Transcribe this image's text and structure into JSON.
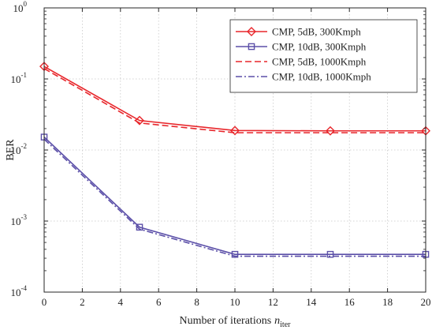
{
  "chart_data": {
    "type": "line",
    "xlabel": "Number of iterations",
    "xlabel_symbol": "n",
    "xlabel_subscript": "iter",
    "ylabel": "BER",
    "yscale": "log",
    "xlim": [
      0,
      20
    ],
    "ylim": [
      0.0001,
      1
    ],
    "x_ticks": [
      0,
      2,
      4,
      6,
      8,
      10,
      12,
      14,
      16,
      18,
      20
    ],
    "x_tick_labels": [
      "0",
      "2",
      "4",
      "6",
      "8",
      "10",
      "12",
      "14",
      "16",
      "18",
      "20"
    ],
    "y_ticks": [
      0.0001,
      0.001,
      0.01,
      0.1,
      1
    ],
    "y_tick_labels": [
      {
        "base": "10",
        "exp": "-4"
      },
      {
        "base": "10",
        "exp": "-3"
      },
      {
        "base": "10",
        "exp": "-2"
      },
      {
        "base": "10",
        "exp": "-1"
      },
      {
        "base": "10",
        "exp": "0"
      }
    ],
    "grid": true,
    "legend_position": "top-right",
    "series": [
      {
        "name": "CMP, 5dB, 300Kmph",
        "color": "#e8262b",
        "line_style": "solid",
        "marker": "diamond",
        "x": [
          0,
          5,
          10,
          15,
          20
        ],
        "y": [
          0.15,
          0.026,
          0.0188,
          0.0186,
          0.0186
        ]
      },
      {
        "name": "CMP, 10dB, 300Kmph",
        "color": "#5b4fa8",
        "line_style": "solid",
        "marker": "square",
        "x": [
          0,
          5,
          10,
          15,
          20
        ],
        "y": [
          0.0152,
          0.00082,
          0.00034,
          0.00034,
          0.00034
        ]
      },
      {
        "name": "CMP, 5dB, 1000Kmph",
        "color": "#e8262b",
        "line_style": "dashed",
        "marker": "none",
        "x": [
          0,
          5,
          10,
          15,
          20
        ],
        "y": [
          0.14,
          0.024,
          0.0175,
          0.0175,
          0.0175
        ]
      },
      {
        "name": "CMP, 10dB, 1000Kmph",
        "color": "#5b4fa8",
        "line_style": "dashdot",
        "marker": "none",
        "x": [
          0,
          5,
          10,
          15,
          20
        ],
        "y": [
          0.0142,
          0.00077,
          0.00032,
          0.00032,
          0.00032
        ]
      }
    ]
  }
}
